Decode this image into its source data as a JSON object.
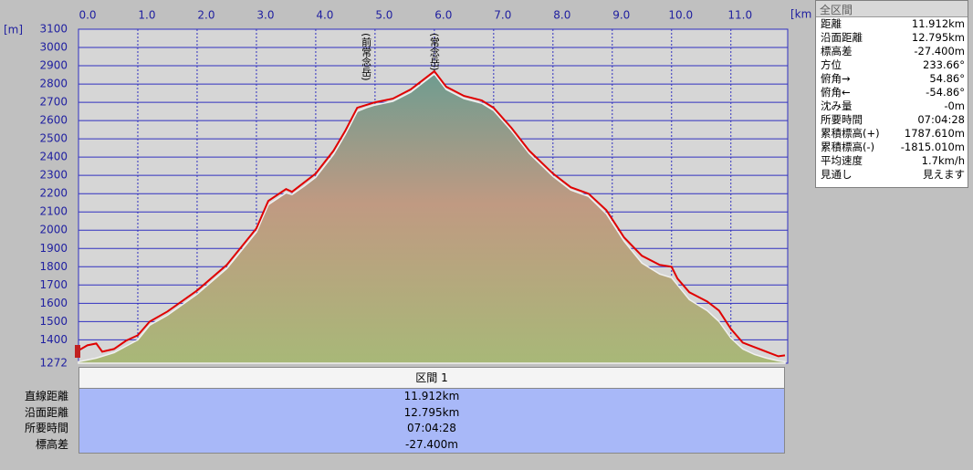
{
  "chart_data": {
    "type": "area",
    "x_unit": "[km]",
    "y_unit": "[m]",
    "x": [
      0,
      0.15,
      0.3,
      0.4,
      0.6,
      0.8,
      1.0,
      1.2,
      1.5,
      2.0,
      2.5,
      3.0,
      3.2,
      3.5,
      3.6,
      3.8,
      4.0,
      4.3,
      4.5,
      4.7,
      4.85,
      5.0,
      5.3,
      5.6,
      5.8,
      6.0,
      6.2,
      6.5,
      6.8,
      7.0,
      7.3,
      7.6,
      8.0,
      8.3,
      8.6,
      8.9,
      9.2,
      9.5,
      9.8,
      10.0,
      10.1,
      10.3,
      10.6,
      10.8,
      11.0,
      11.2,
      11.4,
      11.6,
      11.8,
      11.912
    ],
    "series": [
      {
        "color": "#e00000",
        "values": [
          1342,
          1370,
          1380,
          1335,
          1350,
          1395,
          1425,
          1500,
          1555,
          1670,
          1810,
          2010,
          2160,
          2225,
          2210,
          2260,
          2310,
          2435,
          2545,
          2670,
          2685,
          2700,
          2720,
          2770,
          2820,
          2870,
          2785,
          2735,
          2710,
          2670,
          2560,
          2435,
          2310,
          2235,
          2200,
          2110,
          1960,
          1860,
          1810,
          1800,
          1735,
          1660,
          1610,
          1560,
          1460,
          1385,
          1360,
          1335,
          1310,
          1315
        ]
      },
      {
        "color": "#a8b878",
        "values": [
          1280,
          1290,
          1300,
          1310,
          1330,
          1365,
          1400,
          1480,
          1535,
          1650,
          1790,
          1990,
          2140,
          2205,
          2195,
          2240,
          2290,
          2415,
          2525,
          2650,
          2670,
          2685,
          2705,
          2755,
          2805,
          2855,
          2770,
          2720,
          2695,
          2655,
          2545,
          2420,
          2295,
          2220,
          2185,
          2090,
          1940,
          1820,
          1760,
          1740,
          1700,
          1620,
          1560,
          1500,
          1410,
          1350,
          1320,
          1300,
          1285,
          1280
        ]
      }
    ],
    "xlim": [
      0,
      11.912
    ],
    "ylim": [
      1272,
      3100
    ],
    "xticks": [
      {
        "value": 0,
        "label": "0.0"
      },
      {
        "value": 1,
        "label": "1.0"
      },
      {
        "value": 2,
        "label": "2.0"
      },
      {
        "value": 3,
        "label": "3.0"
      },
      {
        "value": 4,
        "label": "4.0"
      },
      {
        "value": 5,
        "label": "5.0"
      },
      {
        "value": 6,
        "label": "6.0"
      },
      {
        "value": 7,
        "label": "7.0"
      },
      {
        "value": 8,
        "label": "8.0"
      },
      {
        "value": 9,
        "label": "9.0"
      },
      {
        "value": 10,
        "label": "10.0"
      },
      {
        "value": 11,
        "label": "11.0"
      }
    ],
    "yticks": [
      1272,
      1400,
      1500,
      1600,
      1700,
      1800,
      1900,
      2000,
      2100,
      2200,
      2300,
      2400,
      2500,
      2600,
      2700,
      2800,
      2900,
      3000,
      3100
    ],
    "grid": true,
    "annotations": [
      {
        "text": "(前常念岳)",
        "x": 4.85
      },
      {
        "text": "(常念岳)",
        "x": 6.0
      }
    ]
  },
  "summary_panel": {
    "title": "全区間",
    "rows": [
      [
        "距離",
        "11.912km"
      ],
      [
        "沿面距離",
        "12.795km"
      ],
      [
        "標高差",
        "-27.400m"
      ],
      [
        "方位",
        "233.66°"
      ],
      [
        "俯角→",
        "54.86°"
      ],
      [
        "俯角←",
        "-54.86°"
      ],
      [
        "沈み量",
        "-0m"
      ],
      [
        "所要時間",
        "07:04:28"
      ],
      [
        "累積標高(+)",
        "1787.610m"
      ],
      [
        "累積標高(-)",
        "-1815.010m"
      ],
      [
        "平均速度",
        "1.7km/h"
      ],
      [
        "見通し",
        "見えます"
      ]
    ]
  },
  "section_table": {
    "header": "区間 1",
    "rows": [
      [
        "直線距離",
        "11.912km"
      ],
      [
        "沿面距離",
        "12.795km"
      ],
      [
        "所要時間",
        "07:04:28"
      ],
      [
        "標高差",
        "-27.400m"
      ]
    ]
  }
}
